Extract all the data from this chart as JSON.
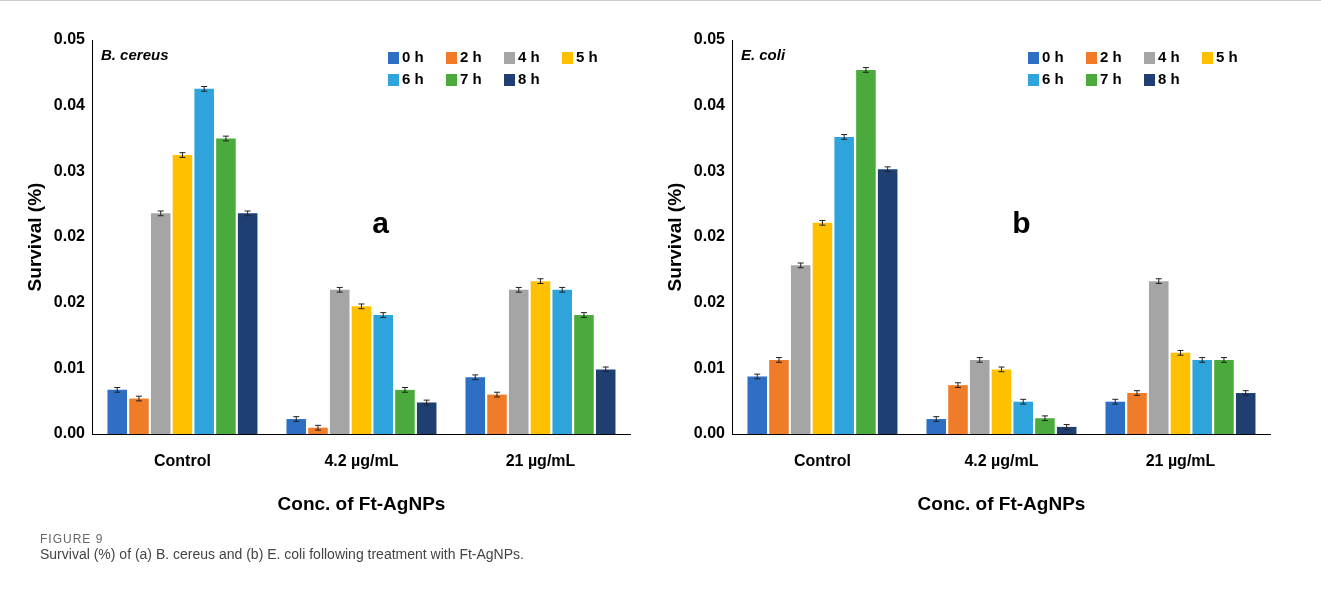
{
  "chart_data": [
    {
      "type": "bar",
      "ylabel": "Survival (%)",
      "xlabel": "Conc. of Ft-AgNPs",
      "categories": [
        "Control",
        "4.2 µg/mL",
        "21 µg/mL"
      ],
      "ylim": [
        0,
        0.05
      ],
      "yticks": [
        {
          "value": 0,
          "label": "0.00"
        },
        {
          "value": 0.00833,
          "label": "0.01"
        },
        {
          "value": 0.01667,
          "label": "0.02"
        },
        {
          "value": 0.025,
          "label": "0.02"
        },
        {
          "value": 0.03333,
          "label": "0.03"
        },
        {
          "value": 0.04167,
          "label": "0.04"
        },
        {
          "value": 0.05,
          "label": "0.05"
        }
      ],
      "grid": false,
      "legend": "top right",
      "series": [
        {
          "name": "0 h",
          "color": "#2e6fc4",
          "values": [
            0.0056,
            0.0019,
            0.0072
          ],
          "errors": [
            0.0003,
            0.0003,
            0.0003
          ]
        },
        {
          "name": "2 h",
          "color": "#f07c2a",
          "values": [
            0.0045,
            0.0008,
            0.005
          ],
          "errors": [
            0.0003,
            0.0003,
            0.0003
          ]
        },
        {
          "name": "4 h",
          "color": "#a5a5a5",
          "values": [
            0.028,
            0.0183,
            0.0183
          ],
          "errors": [
            0.0003,
            0.0003,
            0.0003
          ]
        },
        {
          "name": "5 h",
          "color": "#ffc000",
          "values": [
            0.0354,
            0.0162,
            0.0194
          ],
          "errors": [
            0.0003,
            0.0003,
            0.0003
          ]
        },
        {
          "name": "6 h",
          "color": "#2ea3dc",
          "values": [
            0.0438,
            0.0151,
            0.0183
          ],
          "errors": [
            0.0003,
            0.0003,
            0.0003
          ]
        },
        {
          "name": "7 h",
          "color": "#4aab3c",
          "values": [
            0.0375,
            0.0056,
            0.0151
          ],
          "errors": [
            0.0003,
            0.0003,
            0.0003
          ]
        },
        {
          "name": "8 h",
          "color": "#1f3f73",
          "values": [
            0.028,
            0.004,
            0.0082
          ],
          "errors": [
            0.0003,
            0.0003,
            0.0003
          ]
        }
      ],
      "annotations": [
        "B. cereus",
        "a",
        "FIGURE 9",
        "Survival (%) of (a) B. cereus and (b) E. coli following treatment with Ft-AgNPs."
      ]
    },
    {
      "type": "bar",
      "ylabel": "Survival (%)",
      "xlabel": "Conc. of Ft-AgNPs",
      "categories": [
        "Control",
        "4.2 µg/mL",
        "21 µg/mL"
      ],
      "ylim": [
        0,
        0.05
      ],
      "yticks": [
        {
          "value": 0,
          "label": "0.00"
        },
        {
          "value": 0.00833,
          "label": "0.01"
        },
        {
          "value": 0.01667,
          "label": "0.02"
        },
        {
          "value": 0.025,
          "label": "0.02"
        },
        {
          "value": 0.03333,
          "label": "0.03"
        },
        {
          "value": 0.04167,
          "label": "0.04"
        },
        {
          "value": 0.05,
          "label": "0.05"
        }
      ],
      "grid": false,
      "legend": "top right",
      "series": [
        {
          "name": "0 h",
          "color": "#2e6fc4",
          "values": [
            0.0073,
            0.0019,
            0.0041
          ],
          "errors": [
            0.0003,
            0.0003,
            0.0003
          ]
        },
        {
          "name": "2 h",
          "color": "#f07c2a",
          "values": [
            0.0094,
            0.0062,
            0.0052
          ],
          "errors": [
            0.0003,
            0.0003,
            0.0003
          ]
        },
        {
          "name": "4 h",
          "color": "#a5a5a5",
          "values": [
            0.0214,
            0.0094,
            0.0194
          ],
          "errors": [
            0.0003,
            0.0003,
            0.0003
          ]
        },
        {
          "name": "5 h",
          "color": "#ffc000",
          "values": [
            0.0268,
            0.0082,
            0.0103
          ],
          "errors": [
            0.0003,
            0.0003,
            0.0003
          ]
        },
        {
          "name": "6 h",
          "color": "#2ea3dc",
          "values": [
            0.0377,
            0.0041,
            0.0094
          ],
          "errors": [
            0.0003,
            0.0003,
            0.0003
          ]
        },
        {
          "name": "7 h",
          "color": "#4aab3c",
          "values": [
            0.0462,
            0.002,
            0.0094
          ],
          "errors": [
            0.0003,
            0.0003,
            0.0003
          ]
        },
        {
          "name": "8 h",
          "color": "#1f3f73",
          "values": [
            0.0336,
            0.0009,
            0.0052
          ],
          "errors": [
            0.0003,
            0.0003,
            0.0003
          ]
        }
      ],
      "annotations": [
        "E. coli",
        "b"
      ]
    }
  ]
}
